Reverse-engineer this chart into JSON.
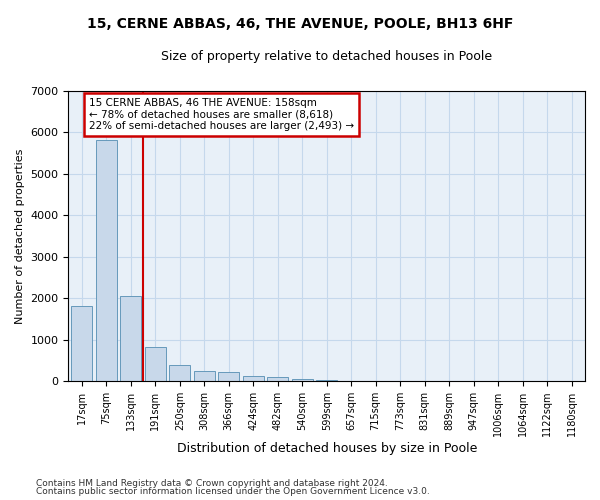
{
  "title1": "15, CERNE ABBAS, 46, THE AVENUE, POOLE, BH13 6HF",
  "title2": "Size of property relative to detached houses in Poole",
  "xlabel": "Distribution of detached houses by size in Poole",
  "ylabel": "Number of detached properties",
  "categories": [
    "17sqm",
    "75sqm",
    "133sqm",
    "191sqm",
    "250sqm",
    "308sqm",
    "366sqm",
    "424sqm",
    "482sqm",
    "540sqm",
    "599sqm",
    "657sqm",
    "715sqm",
    "773sqm",
    "831sqm",
    "889sqm",
    "947sqm",
    "1006sqm",
    "1064sqm",
    "1122sqm",
    "1180sqm"
  ],
  "values": [
    1800,
    5800,
    2050,
    820,
    380,
    250,
    215,
    130,
    95,
    65,
    40,
    0,
    0,
    0,
    0,
    0,
    0,
    0,
    0,
    0,
    0
  ],
  "bar_color": "#c8d8ea",
  "bar_edge_color": "#6699bb",
  "grid_color": "#c5d8ec",
  "background_color": "#e8f0f8",
  "vline_x_index": 2.48,
  "vline_color": "#cc0000",
  "ylim": [
    0,
    7000
  ],
  "yticks": [
    0,
    1000,
    2000,
    3000,
    4000,
    5000,
    6000,
    7000
  ],
  "annotation_text": "15 CERNE ABBAS, 46 THE AVENUE: 158sqm\n← 78% of detached houses are smaller (8,618)\n22% of semi-detached houses are larger (2,493) →",
  "annotation_box_color": "#ffffff",
  "annotation_box_edge": "#cc0000",
  "footer1": "Contains HM Land Registry data © Crown copyright and database right 2024.",
  "footer2": "Contains public sector information licensed under the Open Government Licence v3.0."
}
